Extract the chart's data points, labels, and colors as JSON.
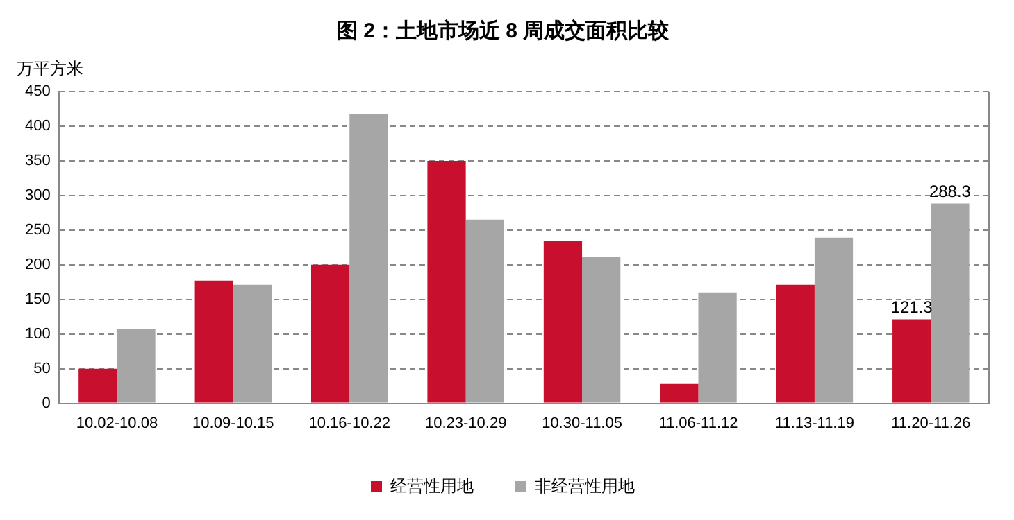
{
  "chart_data": {
    "type": "bar",
    "title": "图 2：土地市场近 8 周成交面积比较",
    "ylabel": "万平方米",
    "categories": [
      "10.02-10.08",
      "10.09-10.15",
      "10.16-10.22",
      "10.23-10.29",
      "10.30-11.05",
      "11.06-11.12",
      "11.13-11.19",
      "11.20-11.26"
    ],
    "series": [
      {
        "name": "经营性用地",
        "color": "#c8102e",
        "values": [
          50,
          177,
          200,
          350,
          234,
          28,
          171,
          121.3
        ],
        "value_labels": [
          null,
          null,
          null,
          null,
          null,
          null,
          null,
          "121.3"
        ]
      },
      {
        "name": "非经营性用地",
        "color": "#a6a6a6",
        "values": [
          107,
          171,
          417,
          265,
          211,
          160,
          239,
          288.3
        ],
        "value_labels": [
          null,
          null,
          null,
          null,
          null,
          null,
          null,
          "288.3"
        ]
      }
    ],
    "ylim": [
      0,
      450
    ],
    "yticks": [
      0,
      50,
      100,
      150,
      200,
      250,
      300,
      350,
      400,
      450
    ],
    "grid": "y",
    "legend": "bottom"
  }
}
